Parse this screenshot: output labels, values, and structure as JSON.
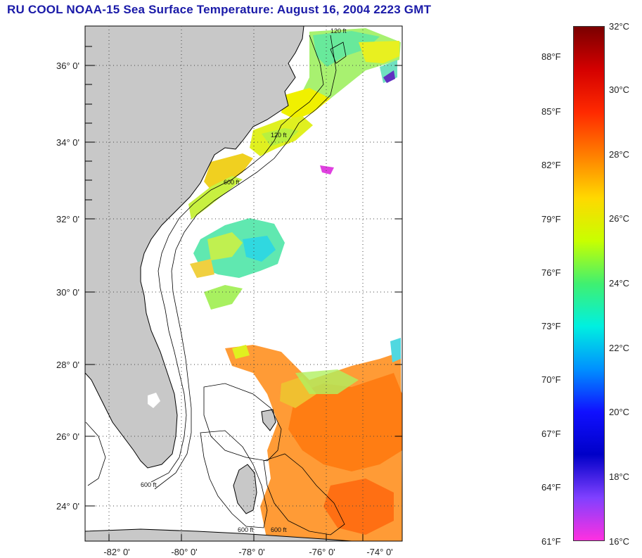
{
  "title": "RU COOL  NOAA-15  Sea Surface Temperature:  August 16, 2004 2223 GMT",
  "map": {
    "lat_labels": [
      "36° 0'",
      "34° 0'",
      "32° 0'",
      "30° 0'",
      "28° 0'",
      "26° 0'",
      "24° 0'"
    ],
    "lon_labels": [
      "-82° 0'",
      "-80° 0'",
      "-78° 0'",
      "-76° 0'",
      "-74° 0'"
    ],
    "contour_labels": [
      "120 ft",
      "600 ft",
      "120 ft",
      "600 ft",
      "600 ft",
      "600 ft"
    ],
    "colors": {
      "land": "#c8c8c8",
      "ocean": "#ffffff",
      "frame": "#000000"
    }
  },
  "colorbar": {
    "celsius": [
      "32°C",
      "30°C",
      "28°C",
      "26°C",
      "24°C",
      "22°C",
      "20°C",
      "18°C",
      "16°C"
    ],
    "fahrenheit": [
      "88°F",
      "85°F",
      "82°F",
      "79°F",
      "76°F",
      "73°F",
      "70°F",
      "67°F",
      "64°F",
      "61°F"
    ],
    "stops": [
      "#7a0000",
      "#d40000",
      "#ff2a00",
      "#ff7f00",
      "#ffd800",
      "#c8ff00",
      "#40f070",
      "#00f0e0",
      "#0090ff",
      "#1010ff",
      "#0000c8",
      "#8040ff",
      "#ff30e0"
    ]
  }
}
